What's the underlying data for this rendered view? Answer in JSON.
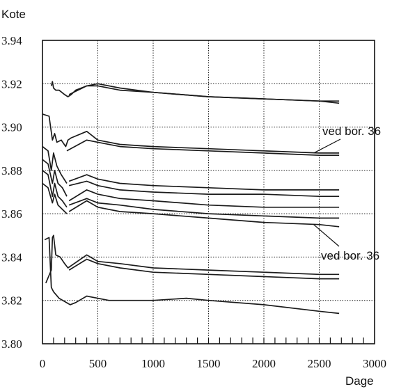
{
  "chart_data": {
    "type": "line",
    "ylabel": "Kote",
    "xlabel": "Dage",
    "xlim": [
      0,
      3000
    ],
    "ylim": [
      3.8,
      3.94
    ],
    "x_ticks": [
      "0",
      "500",
      "1000",
      "1500",
      "2000",
      "2500",
      "3000"
    ],
    "y_ticks": [
      "3.80",
      "3.82",
      "3.84",
      "3.86",
      "3.88",
      "3.90",
      "3.92",
      "3.94"
    ],
    "grid": true,
    "annotations": [
      {
        "text": "ved bor. 36",
        "points_to": {
          "x": 2450,
          "y": 3.888
        }
      },
      {
        "text": "ved bor. 36",
        "points_to": {
          "x": 2450,
          "y": 3.855
        }
      }
    ],
    "series": [
      {
        "x": [
          80,
          90,
          100,
          120,
          150,
          200,
          230,
          260,
          300,
          400,
          500,
          700,
          1000,
          1500,
          2000,
          2500,
          2680
        ],
        "y": [
          3.919,
          3.921,
          3.918,
          3.917,
          3.917,
          3.915,
          3.914,
          3.915,
          3.917,
          3.919,
          3.92,
          3.918,
          3.916,
          3.914,
          3.913,
          3.912,
          3.912
        ]
      },
      {
        "x": [
          240,
          400,
          500,
          700,
          1000,
          1500,
          2000,
          2500,
          2680
        ],
        "y": [
          3.915,
          3.919,
          3.919,
          3.917,
          3.916,
          3.914,
          3.913,
          3.912,
          3.911
        ]
      },
      {
        "x": [
          0,
          60,
          90,
          110,
          130,
          170,
          210,
          230,
          260,
          400,
          500,
          700,
          1000,
          1500,
          2000,
          2500,
          2680
        ],
        "y": [
          3.906,
          3.905,
          3.894,
          3.897,
          3.893,
          3.894,
          3.891,
          3.894,
          3.895,
          3.898,
          3.894,
          3.892,
          3.891,
          3.89,
          3.889,
          3.888,
          3.888
        ]
      },
      {
        "x": [
          220,
          400,
          500,
          700,
          1000,
          1500,
          2000,
          2500,
          2680
        ],
        "y": [
          3.889,
          3.894,
          3.893,
          3.891,
          3.89,
          3.889,
          3.888,
          3.887,
          3.887
        ]
      },
      {
        "x": [
          0,
          50,
          80,
          100,
          130,
          170,
          220
        ],
        "y": [
          3.891,
          3.889,
          3.88,
          3.888,
          3.882,
          3.878,
          3.874
        ]
      },
      {
        "x": [
          240,
          400,
          500,
          700,
          1000,
          1500,
          2000,
          2500,
          2680
        ],
        "y": [
          3.875,
          3.878,
          3.876,
          3.874,
          3.873,
          3.872,
          3.871,
          3.871,
          3.871
        ]
      },
      {
        "x": [
          240,
          400,
          500,
          700,
          1000,
          1500,
          2000,
          2500,
          2680
        ],
        "y": [
          3.873,
          3.875,
          3.873,
          3.871,
          3.87,
          3.869,
          3.869,
          3.868,
          3.868
        ]
      },
      {
        "x": [
          0,
          50,
          90,
          110,
          140,
          180,
          220
        ],
        "y": [
          3.885,
          3.883,
          3.874,
          3.88,
          3.874,
          3.872,
          3.868
        ]
      },
      {
        "x": [
          240,
          400,
          500,
          700,
          1000,
          1500,
          2000,
          2500,
          2680
        ],
        "y": [
          3.866,
          3.871,
          3.869,
          3.867,
          3.866,
          3.864,
          3.863,
          3.863,
          3.863
        ]
      },
      {
        "x": [
          0,
          50,
          90,
          110,
          140,
          180,
          220
        ],
        "y": [
          3.88,
          3.878,
          3.868,
          3.874,
          3.868,
          3.866,
          3.863
        ]
      },
      {
        "x": [
          240,
          400,
          500,
          700,
          1000,
          1500,
          2000,
          2500,
          2680
        ],
        "y": [
          3.864,
          3.867,
          3.865,
          3.864,
          3.862,
          3.86,
          3.859,
          3.858,
          3.858
        ]
      },
      {
        "x": [
          0,
          50,
          90,
          110,
          140,
          180,
          220
        ],
        "y": [
          3.874,
          3.872,
          3.865,
          3.869,
          3.864,
          3.862,
          3.86
        ]
      },
      {
        "x": [
          240,
          400,
          500,
          700,
          1000,
          1500,
          2000,
          2500,
          2680
        ],
        "y": [
          3.861,
          3.866,
          3.863,
          3.861,
          3.86,
          3.858,
          3.856,
          3.855,
          3.854
        ]
      },
      {
        "x": [
          30,
          80,
          90,
          100,
          120,
          160,
          200,
          230,
          400,
          500,
          700,
          1000,
          1500,
          2000,
          2500,
          2680
        ],
        "y": [
          3.828,
          3.834,
          3.849,
          3.85,
          3.841,
          3.84,
          3.837,
          3.835,
          3.841,
          3.838,
          3.837,
          3.835,
          3.834,
          3.833,
          3.832,
          3.832
        ]
      },
      {
        "x": [
          240,
          400,
          500,
          700,
          1000,
          1500,
          2000,
          2500,
          2680
        ],
        "y": [
          3.834,
          3.839,
          3.837,
          3.835,
          3.833,
          3.832,
          3.831,
          3.83,
          3.83
        ]
      },
      {
        "x": [
          20,
          60,
          80,
          100,
          150,
          250,
          300,
          400,
          600,
          1000,
          1300,
          1500,
          2000,
          2500,
          2680
        ],
        "y": [
          3.848,
          3.849,
          3.826,
          3.824,
          3.821,
          3.818,
          3.819,
          3.822,
          3.82,
          3.82,
          3.821,
          3.82,
          3.818,
          3.815,
          3.814
        ]
      }
    ]
  }
}
